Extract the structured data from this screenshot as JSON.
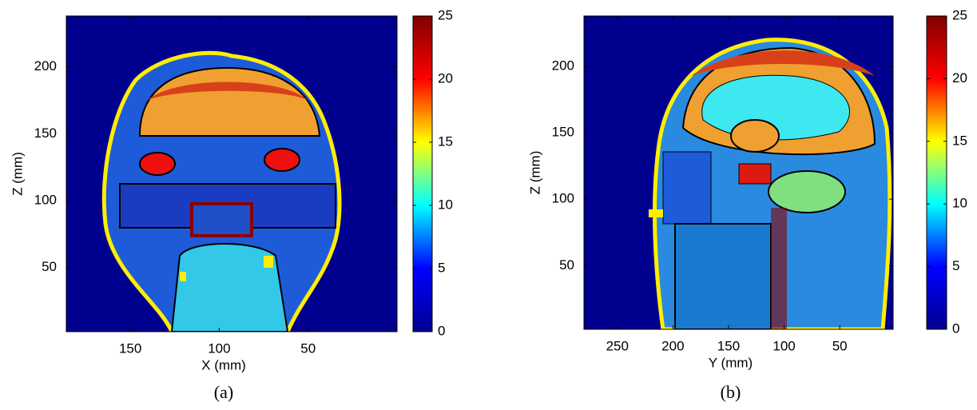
{
  "chart_data": [
    {
      "type": "heatmap",
      "caption": "(a)",
      "xlabel": "X (mm)",
      "ylabel": "Z (mm)",
      "xlim": [
        186,
        0
      ],
      "xticks": [
        150,
        100,
        50
      ],
      "ylim": [
        2,
        238
      ],
      "yticks": [
        50,
        100,
        150,
        200
      ],
      "colorbar": {
        "lim": [
          0,
          25
        ],
        "ticks": [
          0,
          5,
          10,
          15,
          20,
          25
        ]
      },
      "colormap": [
        "#00008f",
        "#0000ff",
        "#00ffff",
        "#ffff00",
        "#ff0000",
        "#800000"
      ]
    },
    {
      "type": "heatmap",
      "caption": "(b)",
      "xlabel": "Y (mm)",
      "ylabel": "Z (mm)",
      "xlim": [
        280,
        2
      ],
      "xticks": [
        250,
        200,
        150,
        100,
        50
      ],
      "ylim": [
        2,
        238
      ],
      "yticks": [
        50,
        100,
        150,
        200
      ],
      "colorbar": {
        "lim": [
          0,
          25
        ],
        "ticks": [
          0,
          5,
          10,
          15,
          20,
          25
        ]
      },
      "colormap": [
        "#00008f",
        "#0000ff",
        "#00ffff",
        "#ffff00",
        "#ff0000",
        "#800000"
      ]
    }
  ]
}
